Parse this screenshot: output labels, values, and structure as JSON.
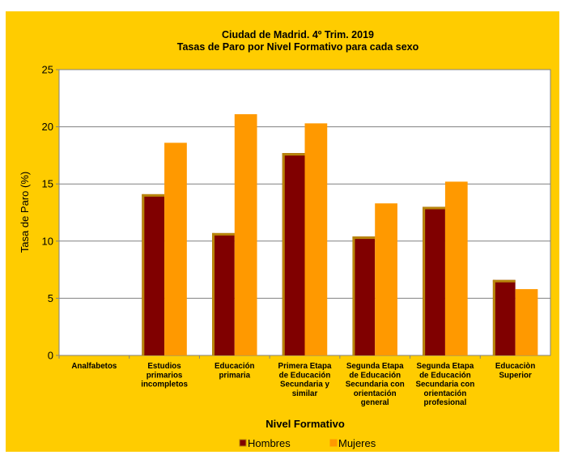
{
  "chart_data": {
    "type": "bar",
    "title": "Ciudad de Madrid. 4º Trim. 2019",
    "subtitle": "Tasas de Paro por Nivel Formativo para cada sexo",
    "xlabel": "Nivel Formativo",
    "ylabel": "Tasa de Paro (%)",
    "ylim": [
      0,
      25
    ],
    "yticks": [
      "0",
      "5",
      "10",
      "15",
      "20",
      "25"
    ],
    "grid": true,
    "legend_position": "bottom",
    "categories": [
      [
        "Analfabetos"
      ],
      [
        "Estudios",
        "primarios",
        "incompletos"
      ],
      [
        "Educación",
        "primaria"
      ],
      [
        "Primera Etapa",
        "de Educación",
        "Secundaria y",
        "similar"
      ],
      [
        "Segunda Etapa",
        "de Educación",
        "Secundaria con",
        "orientación",
        "general"
      ],
      [
        "Segunda Etapa",
        "de Educación",
        "Secundaria con",
        "orientación",
        "profesional"
      ],
      [
        "Educaciòn",
        "Superior"
      ]
    ],
    "series": [
      {
        "name": "Hombres",
        "color": "#800000",
        "edge": "#B8860B",
        "values": [
          0,
          14.1,
          10.7,
          17.7,
          10.4,
          13.0,
          6.6
        ]
      },
      {
        "name": "Mujeres",
        "color": "#FF9900",
        "edge": "#FF9900",
        "values": [
          0,
          18.6,
          21.1,
          20.3,
          13.3,
          15.2,
          5.8
        ]
      }
    ],
    "colors": {
      "background": "#FFCC00",
      "plot_area": "#FFFFFF",
      "gridline": "#808080"
    }
  }
}
